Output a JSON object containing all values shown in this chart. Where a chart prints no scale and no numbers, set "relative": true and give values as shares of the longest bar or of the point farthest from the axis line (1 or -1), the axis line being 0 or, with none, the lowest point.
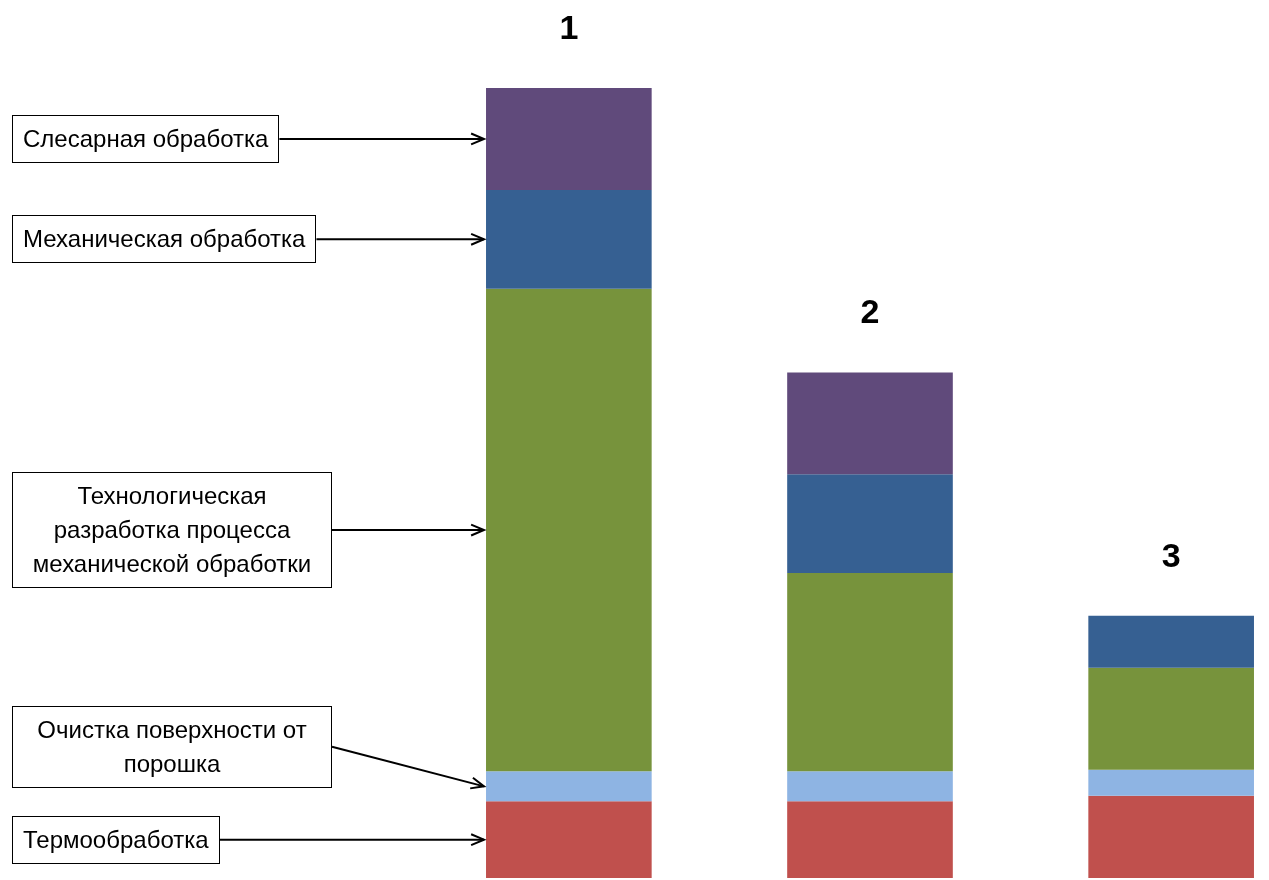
{
  "chart_data": {
    "type": "bar",
    "stacked": true,
    "relative": true,
    "categories": [
      "1",
      "2",
      "3"
    ],
    "series": [
      {
        "name": "Термообработка",
        "color": "#c0504d",
        "values": [
          0.097,
          0.097,
          0.104
        ]
      },
      {
        "name": "Очистка поверхности от порошка",
        "color": "#8eb4e3",
        "values": [
          0.038,
          0.038,
          0.033
        ]
      },
      {
        "name": "Технологическая разработка процесса механической обработки",
        "color": "#77933c",
        "values": [
          0.611,
          0.251,
          0.129
        ]
      },
      {
        "name": "Механическая обработка",
        "color": "#366092",
        "values": [
          0.125,
          0.125,
          0.066
        ]
      },
      {
        "name": "Слесарная обработка",
        "color": "#604a7b",
        "values": [
          0.129,
          0.129,
          null
        ]
      }
    ]
  }
}
